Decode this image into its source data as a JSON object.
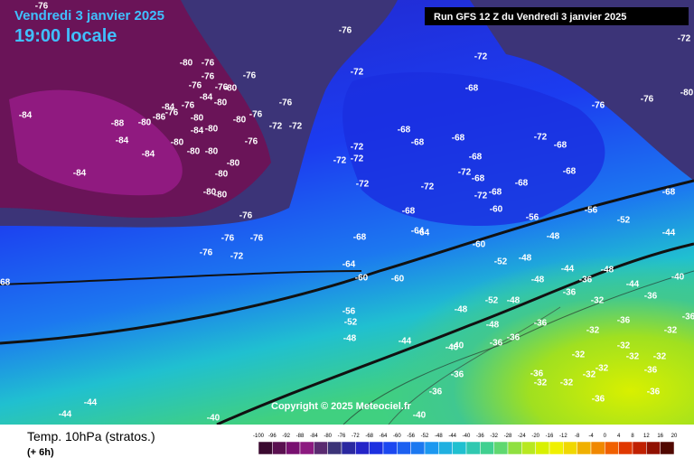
{
  "header": {
    "date": "Vendredi 3 janvier 2025",
    "time": "19:00 locale",
    "run": "Run GFS 12 Z du Vendredi 3 janvier 2025"
  },
  "copyright": "Copyright © 2025 Meteociel.fr",
  "footer": {
    "title": "Temp. 10hPa (stratos.)",
    "step": "(+ 6h)",
    "scale": [
      -100,
      -96,
      -92,
      -88,
      -84,
      -80,
      -76,
      -72,
      -68,
      -64,
      -60,
      -56,
      -52,
      -48,
      -44,
      -40,
      -36,
      -32,
      -28,
      -24,
      -20,
      -16,
      -12,
      -8,
      -4,
      0,
      4,
      8,
      12,
      16,
      20
    ]
  },
  "map_labels": [
    -76,
    -76,
    -72,
    -72,
    -80,
    -76,
    -72,
    -76,
    -76,
    -76,
    -76,
    -68,
    -80,
    -76,
    -80,
    -84,
    -80,
    -76,
    -84,
    -76,
    -86,
    -76,
    -76,
    -84,
    -80,
    -80,
    -76,
    -88,
    -80,
    -72,
    -72,
    -84,
    -80,
    -68,
    -84,
    -80,
    -76,
    -68,
    -72,
    -68,
    -72,
    -68,
    -80,
    -80,
    -84,
    -72,
    -72,
    -68,
    -80,
    -84,
    -68,
    -80,
    -72,
    -68,
    -68,
    -72,
    -72,
    -80,
    -80,
    -68,
    -72,
    -68,
    -60,
    -68,
    -56,
    -76,
    -56,
    -52,
    -76,
    -76,
    -68,
    -64,
    -64,
    -60,
    -48,
    -44,
    -76,
    -72,
    -64,
    -48,
    -52,
    -44,
    -60,
    -60,
    -68,
    -48,
    -48,
    -40,
    -36,
    -36,
    -44,
    -36,
    -56,
    -52,
    -52,
    -48,
    -48,
    -32,
    -48,
    -44,
    -48,
    -36,
    -36,
    -36,
    -32,
    -32,
    -36,
    -36,
    -40,
    -40,
    -32,
    -32,
    -32,
    -32,
    -32,
    -36,
    -36,
    -36,
    -32,
    -32,
    -32,
    -36,
    -36,
    -36,
    -44,
    -44,
    -40,
    -40
  ]
}
